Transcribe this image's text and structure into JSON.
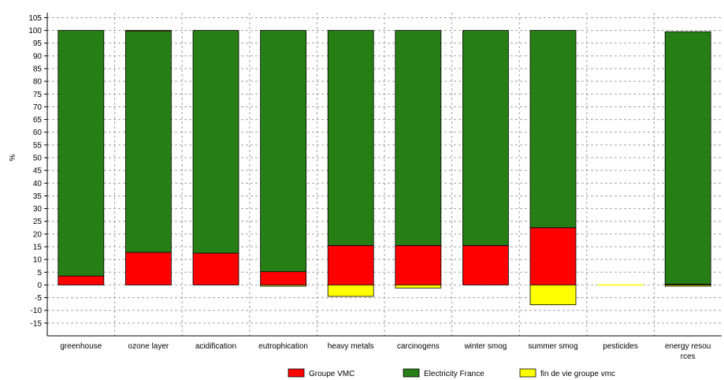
{
  "chart_data": {
    "type": "bar",
    "stacked": true,
    "title": "",
    "xlabel": "",
    "ylabel": "%",
    "ylim": [
      -20,
      107
    ],
    "yticks": [
      105,
      100,
      95,
      90,
      85,
      80,
      75,
      70,
      65,
      60,
      55,
      50,
      45,
      40,
      35,
      30,
      25,
      20,
      15,
      10,
      5,
      0,
      -5,
      -10,
      -15
    ],
    "grid": true,
    "legend_position": "bottom",
    "categories": [
      [
        "greenhouse"
      ],
      [
        "ozone layer"
      ],
      [
        "acidification"
      ],
      [
        "eutrophication"
      ],
      [
        "heavy metals"
      ],
      [
        "carcinogens"
      ],
      [
        "winter smog"
      ],
      [
        "summer smog"
      ],
      [
        "pesticides"
      ],
      [
        "energy resou",
        "rces"
      ]
    ],
    "series": [
      {
        "name": "Groupe VMC",
        "color": "#ff0000",
        "values": [
          3.5,
          12.8,
          12.5,
          5.2,
          15.5,
          15.5,
          15.5,
          22.5,
          0,
          0.3
        ]
      },
      {
        "name": "Electricity France",
        "color": "#267f15",
        "values": [
          96.5,
          86.9,
          87.5,
          94.8,
          84.5,
          84.5,
          84.5,
          77.5,
          0,
          99.2
        ]
      },
      {
        "name": "fin de vie groupe vmc",
        "color": "#ffff00",
        "values": [
          0,
          0.3,
          0,
          -0.5,
          -4.5,
          -1.2,
          0,
          -7.8,
          0,
          -0.5
        ]
      }
    ]
  }
}
